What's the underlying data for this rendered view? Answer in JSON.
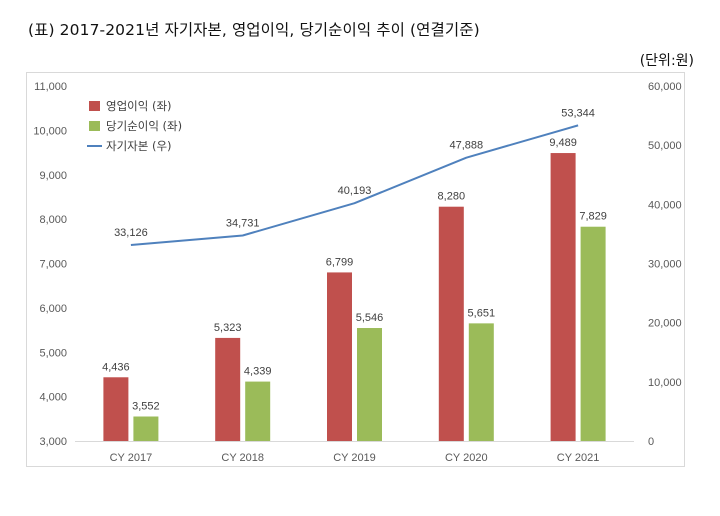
{
  "title": "(표) 2017-2021년 자기자본, 영업이익, 당기순이익 추이 (연결기준)",
  "unit": "(단위:원)",
  "colors": {
    "operating": "#c0504d",
    "net": "#9bbb59",
    "equity": "#4f81bd"
  },
  "chart_data": {
    "type": "bar",
    "title": "(표) 2017-2021년 자기자본, 영업이익, 당기순이익 추이 (연결기준)",
    "categories": [
      "CY 2017",
      "CY 2018",
      "CY 2019",
      "CY 2020",
      "CY 2021"
    ],
    "series": [
      {
        "name": "영업이익 (좌)",
        "type": "bar",
        "axis": "left",
        "values": [
          4436,
          5323,
          6799,
          8280,
          9489
        ]
      },
      {
        "name": "당기순이익 (좌)",
        "type": "bar",
        "axis": "left",
        "values": [
          3552,
          4339,
          5546,
          5651,
          7829
        ]
      },
      {
        "name": "자기자본 (우)",
        "type": "line",
        "axis": "right",
        "values": [
          33126,
          34731,
          40193,
          47888,
          53344
        ]
      }
    ],
    "ylim_left": [
      3000,
      11000
    ],
    "ylim_right": [
      0,
      60000
    ],
    "yticks_left": [
      "3,000",
      "4,000",
      "5,000",
      "6,000",
      "7,000",
      "8,000",
      "9,000",
      "10,000",
      "11,000"
    ],
    "yticks_right": [
      "0",
      "10,000",
      "20,000",
      "30,000",
      "40,000",
      "50,000",
      "60,000"
    ],
    "labels_operating": [
      "4,436",
      "5,323",
      "6,799",
      "8,280",
      "9,489"
    ],
    "labels_net": [
      "3,552",
      "4,339",
      "5,546",
      "5,651",
      "7,829"
    ],
    "labels_equity": [
      "33,126",
      "34,731",
      "40,193",
      "47,888",
      "53,344"
    ],
    "legend_position": "top-left",
    "grid": false
  }
}
